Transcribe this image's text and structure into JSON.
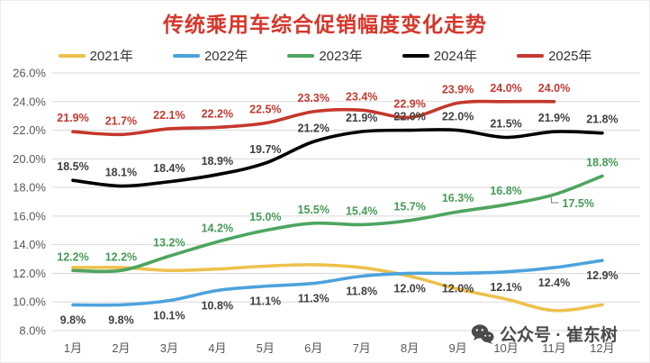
{
  "watermark": {
    "icon": "wechat-icon",
    "text": "公众号 · 崔东树"
  },
  "chart_data": {
    "type": "line",
    "title": "传统乘用车综合促销幅度变化走势",
    "title_color": "#d6362b",
    "xlabel": "",
    "ylabel": "",
    "categories": [
      "1月",
      "2月",
      "3月",
      "4月",
      "5月",
      "6月",
      "7月",
      "8月",
      "9月",
      "10月",
      "11月",
      "12月"
    ],
    "y_axis": {
      "min": 8,
      "max": 26,
      "step": 2,
      "ticks": [
        "8.0%",
        "10.0%",
        "12.0%",
        "14.0%",
        "16.0%",
        "18.0%",
        "20.0%",
        "22.0%",
        "24.0%",
        "26.0%"
      ]
    },
    "grid": true,
    "gridline_color": "#d9d9d9",
    "axis_text_color": "#595959",
    "legend_position": "top",
    "series": [
      {
        "name": "2021年",
        "color": "#edc14d",
        "labels_shown": false,
        "values": [
          12.4,
          12.4,
          12.2,
          12.3,
          12.5,
          12.6,
          12.4,
          11.8,
          10.9,
          10.2,
          9.4,
          9.8
        ]
      },
      {
        "name": "2022年",
        "color": "#4da3dc",
        "labels_shown": true,
        "label_position": "below",
        "label_color": "#404040",
        "values": [
          9.8,
          9.8,
          10.1,
          10.8,
          11.1,
          11.3,
          11.8,
          12.0,
          12.0,
          12.1,
          12.4,
          12.9
        ]
      },
      {
        "name": "2023年",
        "color": "#4ea55f",
        "labels_shown": true,
        "label_position": "above",
        "label_color": "#479a58",
        "callout_index": 10,
        "values": [
          12.2,
          12.2,
          13.2,
          14.2,
          15.0,
          15.5,
          15.4,
          15.7,
          16.3,
          16.8,
          17.5,
          18.8
        ]
      },
      {
        "name": "2024年",
        "color": "#000000",
        "labels_shown": true,
        "label_position": "above",
        "label_color": "#404040",
        "values": [
          18.5,
          18.1,
          18.4,
          18.9,
          19.7,
          21.2,
          21.9,
          22.0,
          22.0,
          21.5,
          21.9,
          21.8
        ]
      },
      {
        "name": "2025年",
        "color": "#c5382c",
        "labels_shown": true,
        "label_position": "above",
        "label_color": "#c23a31",
        "values": [
          21.9,
          21.7,
          22.1,
          22.2,
          22.5,
          23.3,
          23.4,
          22.9,
          23.9,
          24.0,
          24.0
        ]
      }
    ]
  }
}
